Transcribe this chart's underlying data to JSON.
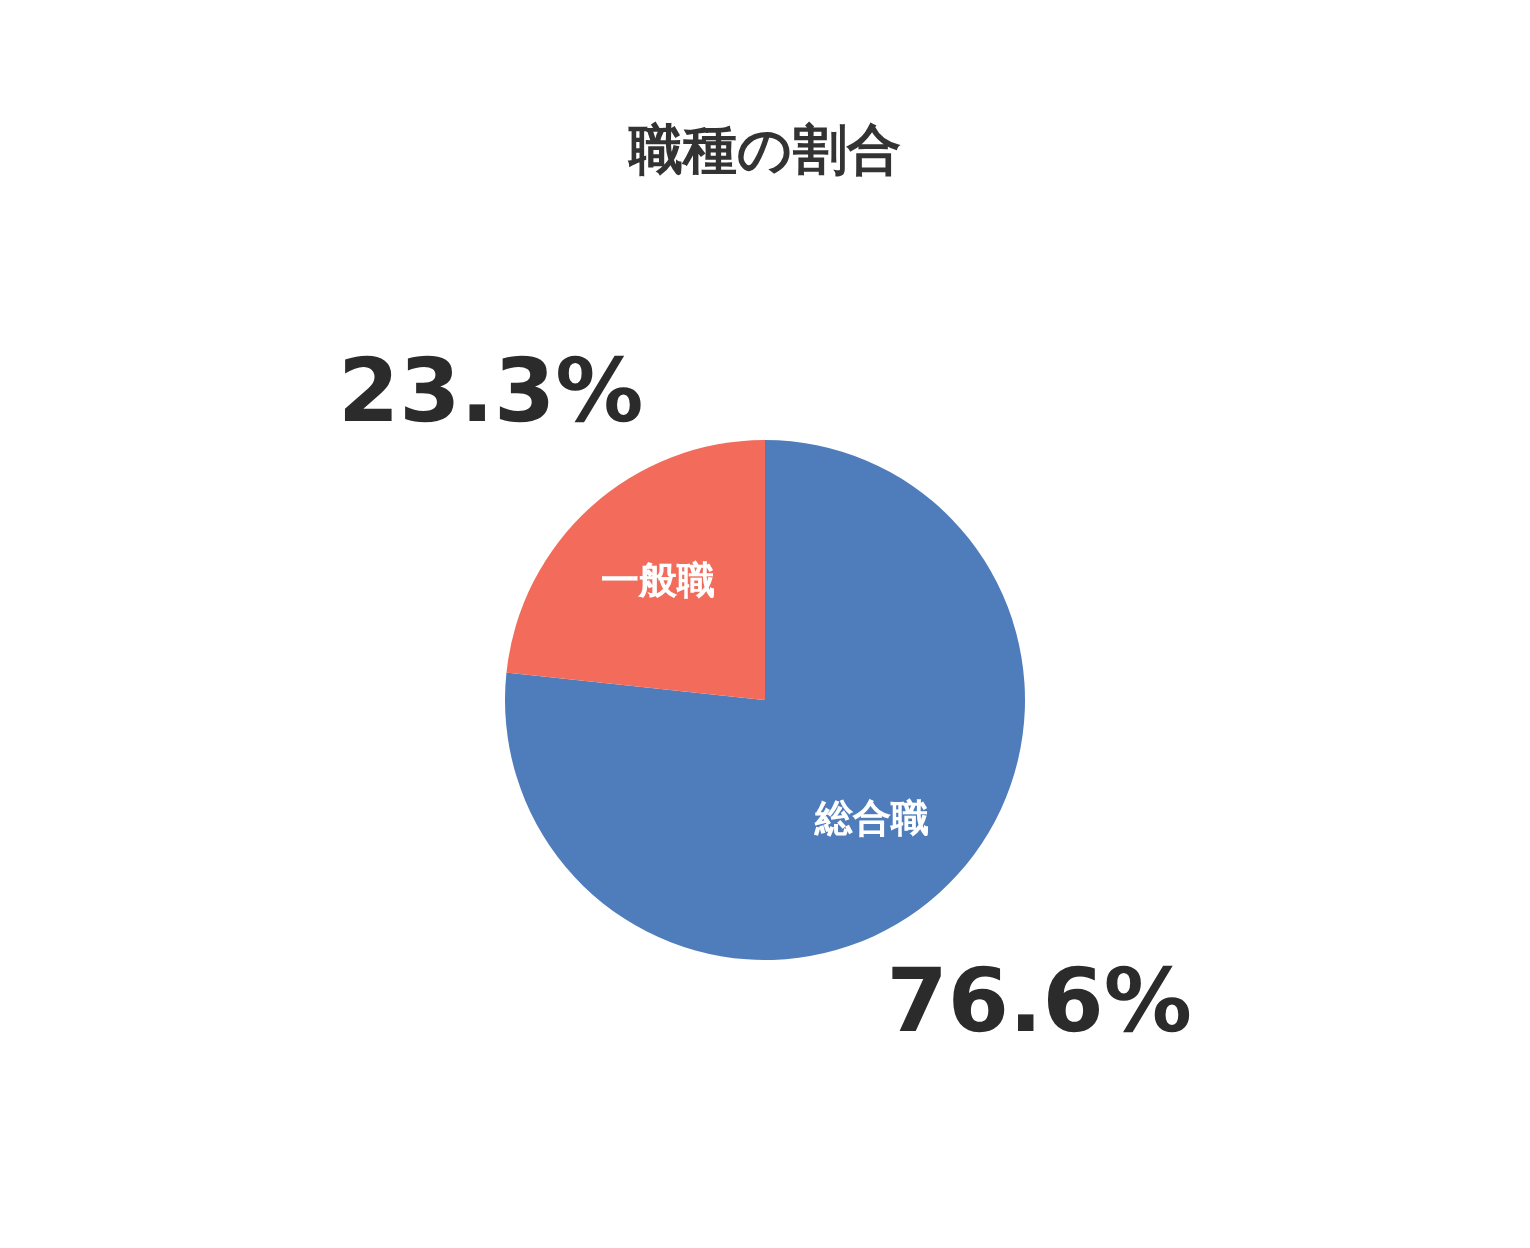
{
  "chart_data": {
    "type": "pie",
    "title": "職種の割合",
    "categories": [
      "総合職",
      "一般職"
    ],
    "values": [
      76.6,
      23.3
    ],
    "colors": [
      "#4f7dbb",
      "#f26b5b"
    ],
    "value_labels": [
      "76.6%",
      "23.3%"
    ],
    "legend": false
  }
}
